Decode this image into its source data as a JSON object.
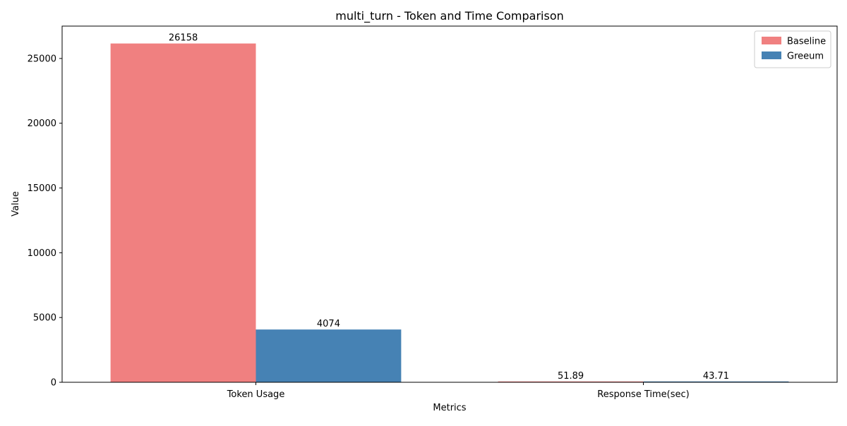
{
  "chart_data": {
    "type": "bar",
    "title": "multi_turn - Token and Time Comparison",
    "xlabel": "Metrics",
    "ylabel": "Value",
    "categories": [
      "Token Usage",
      "Response Time(sec)"
    ],
    "series": [
      {
        "name": "Baseline",
        "values": [
          26158,
          51.89
        ],
        "labels": [
          "26158",
          "51.89"
        ],
        "color": "#f08080"
      },
      {
        "name": "Greeum",
        "values": [
          4074,
          43.71
        ],
        "labels": [
          "4074",
          "43.71"
        ],
        "color": "#4682b4"
      }
    ],
    "ylim": [
      0,
      27500
    ],
    "yticks": [
      0,
      5000,
      10000,
      15000,
      20000,
      25000
    ],
    "grid": false,
    "legend_position": "top-right"
  }
}
